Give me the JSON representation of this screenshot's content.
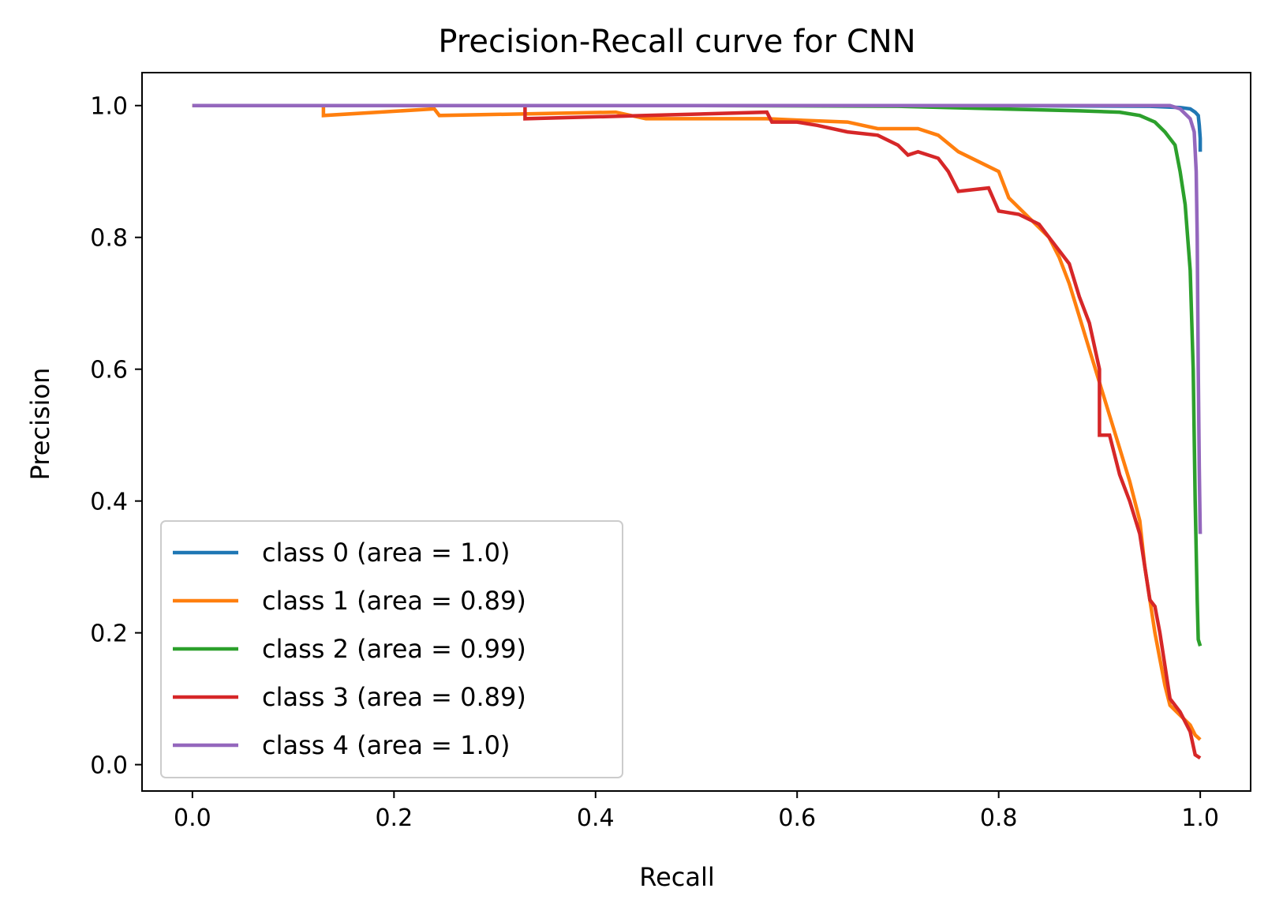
{
  "chart_data": {
    "type": "line",
    "title": "Precision-Recall curve for CNN",
    "xlabel": "Recall",
    "ylabel": "Precision",
    "xlim": [
      -0.05,
      1.05
    ],
    "ylim": [
      -0.04,
      1.05
    ],
    "xticks": [
      0.0,
      0.2,
      0.4,
      0.6,
      0.8,
      1.0
    ],
    "yticks": [
      0.0,
      0.2,
      0.4,
      0.6,
      0.8,
      1.0
    ],
    "xtick_labels": [
      "0.0",
      "0.2",
      "0.4",
      "0.6",
      "0.8",
      "1.0"
    ],
    "ytick_labels": [
      "0.0",
      "0.2",
      "0.4",
      "0.6",
      "0.8",
      "1.0"
    ],
    "grid": false,
    "legend_position": "lower-left",
    "series": [
      {
        "name": "class 0 (area = 1.0)",
        "color": "#1f77b4",
        "points": [
          [
            0.0,
            1.0
          ],
          [
            0.5,
            1.0
          ],
          [
            0.8,
            1.0
          ],
          [
            0.95,
            0.999
          ],
          [
            0.98,
            0.997
          ],
          [
            0.99,
            0.995
          ],
          [
            0.995,
            0.99
          ],
          [
            0.998,
            0.985
          ],
          [
            0.999,
            0.97
          ],
          [
            1.0,
            0.95
          ],
          [
            1.0,
            0.93
          ]
        ]
      },
      {
        "name": "class 1 (area = 0.89)",
        "color": "#ff7f0e",
        "points": [
          [
            0.0,
            1.0
          ],
          [
            0.13,
            1.0
          ],
          [
            0.13,
            0.985
          ],
          [
            0.24,
            0.995
          ],
          [
            0.245,
            0.985
          ],
          [
            0.42,
            0.99
          ],
          [
            0.45,
            0.98
          ],
          [
            0.5,
            0.98
          ],
          [
            0.57,
            0.98
          ],
          [
            0.6,
            0.978
          ],
          [
            0.65,
            0.975
          ],
          [
            0.68,
            0.965
          ],
          [
            0.72,
            0.965
          ],
          [
            0.74,
            0.955
          ],
          [
            0.76,
            0.93
          ],
          [
            0.78,
            0.915
          ],
          [
            0.8,
            0.9
          ],
          [
            0.81,
            0.86
          ],
          [
            0.83,
            0.83
          ],
          [
            0.85,
            0.8
          ],
          [
            0.86,
            0.77
          ],
          [
            0.87,
            0.73
          ],
          [
            0.88,
            0.68
          ],
          [
            0.89,
            0.63
          ],
          [
            0.9,
            0.58
          ],
          [
            0.91,
            0.53
          ],
          [
            0.92,
            0.48
          ],
          [
            0.93,
            0.43
          ],
          [
            0.94,
            0.37
          ],
          [
            0.945,
            0.3
          ],
          [
            0.95,
            0.25
          ],
          [
            0.955,
            0.2
          ],
          [
            0.96,
            0.16
          ],
          [
            0.965,
            0.12
          ],
          [
            0.97,
            0.09
          ],
          [
            0.98,
            0.075
          ],
          [
            0.99,
            0.06
          ],
          [
            0.995,
            0.045
          ],
          [
            1.0,
            0.038
          ]
        ]
      },
      {
        "name": "class 2 (area = 0.99)",
        "color": "#2ca02c",
        "points": [
          [
            0.0,
            1.0
          ],
          [
            0.5,
            1.0
          ],
          [
            0.7,
            0.999
          ],
          [
            0.8,
            0.995
          ],
          [
            0.88,
            0.992
          ],
          [
            0.92,
            0.99
          ],
          [
            0.94,
            0.985
          ],
          [
            0.955,
            0.975
          ],
          [
            0.965,
            0.96
          ],
          [
            0.975,
            0.94
          ],
          [
            0.98,
            0.9
          ],
          [
            0.985,
            0.85
          ],
          [
            0.99,
            0.75
          ],
          [
            0.993,
            0.6
          ],
          [
            0.995,
            0.4
          ],
          [
            0.997,
            0.25
          ],
          [
            0.998,
            0.19
          ],
          [
            1.0,
            0.18
          ]
        ]
      },
      {
        "name": "class 3 (area = 0.89)",
        "color": "#d62728",
        "points": [
          [
            0.0,
            1.0
          ],
          [
            0.33,
            1.0
          ],
          [
            0.33,
            0.98
          ],
          [
            0.45,
            0.985
          ],
          [
            0.57,
            0.99
          ],
          [
            0.575,
            0.975
          ],
          [
            0.6,
            0.975
          ],
          [
            0.62,
            0.97
          ],
          [
            0.65,
            0.96
          ],
          [
            0.68,
            0.955
          ],
          [
            0.7,
            0.94
          ],
          [
            0.71,
            0.925
          ],
          [
            0.72,
            0.93
          ],
          [
            0.74,
            0.92
          ],
          [
            0.75,
            0.9
          ],
          [
            0.76,
            0.87
          ],
          [
            0.79,
            0.875
          ],
          [
            0.8,
            0.84
          ],
          [
            0.82,
            0.835
          ],
          [
            0.84,
            0.82
          ],
          [
            0.85,
            0.8
          ],
          [
            0.86,
            0.78
          ],
          [
            0.87,
            0.76
          ],
          [
            0.88,
            0.71
          ],
          [
            0.89,
            0.67
          ],
          [
            0.9,
            0.6
          ],
          [
            0.9,
            0.5
          ],
          [
            0.91,
            0.5
          ],
          [
            0.92,
            0.44
          ],
          [
            0.93,
            0.4
          ],
          [
            0.94,
            0.35
          ],
          [
            0.945,
            0.3
          ],
          [
            0.95,
            0.25
          ],
          [
            0.955,
            0.24
          ],
          [
            0.96,
            0.2
          ],
          [
            0.965,
            0.15
          ],
          [
            0.97,
            0.1
          ],
          [
            0.98,
            0.08
          ],
          [
            0.99,
            0.05
          ],
          [
            0.995,
            0.015
          ],
          [
            1.0,
            0.01
          ]
        ]
      },
      {
        "name": "class 4 (area = 1.0)",
        "color": "#9467bd",
        "points": [
          [
            0.0,
            1.0
          ],
          [
            0.5,
            1.0
          ],
          [
            0.8,
            1.0
          ],
          [
            0.97,
            1.0
          ],
          [
            0.98,
            0.995
          ],
          [
            0.99,
            0.98
          ],
          [
            0.994,
            0.96
          ],
          [
            0.996,
            0.9
          ],
          [
            0.997,
            0.8
          ],
          [
            0.998,
            0.6
          ],
          [
            0.999,
            0.45
          ],
          [
            1.0,
            0.35
          ]
        ]
      }
    ]
  }
}
